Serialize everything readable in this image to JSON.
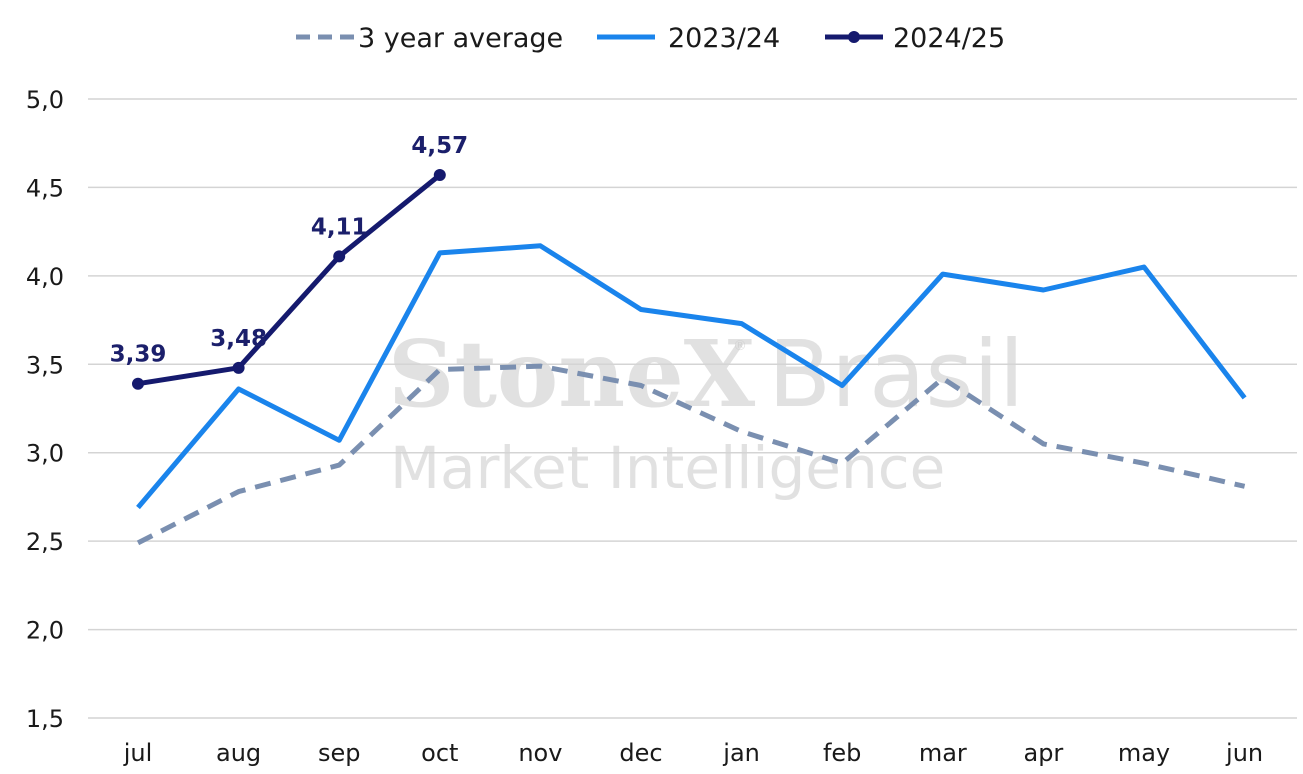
{
  "watermark": {
    "brand_a": "StoneX",
    "registered": "®",
    "brand_b": "Brasil",
    "subtitle": "Market Intelligence"
  },
  "chart_data": {
    "type": "line",
    "title": "",
    "xlabel": "",
    "ylabel": "",
    "categories": [
      "jul",
      "aug",
      "sep",
      "oct",
      "nov",
      "dec",
      "jan",
      "feb",
      "mar",
      "apr",
      "may",
      "jun"
    ],
    "ylim": [
      1.5,
      5.0
    ],
    "yticks": [
      1.5,
      2.0,
      2.5,
      3.0,
      3.5,
      4.0,
      4.5,
      5.0
    ],
    "ytick_labels": [
      "1,5",
      "2,0",
      "2,5",
      "3,0",
      "3,5",
      "4,0",
      "4,5",
      "5,0"
    ],
    "grid": true,
    "legend_position": "top-center",
    "series": [
      {
        "name": "3 year average",
        "color": "#7a8fb0",
        "style": "dashed",
        "values": [
          2.49,
          2.78,
          2.93,
          3.47,
          3.49,
          3.38,
          3.12,
          2.94,
          3.42,
          3.05,
          2.94,
          2.81
        ]
      },
      {
        "name": "2023/24",
        "color": "#1a84ec",
        "style": "solid",
        "values": [
          2.69,
          3.36,
          3.07,
          4.13,
          4.17,
          3.81,
          3.73,
          3.38,
          4.01,
          3.92,
          4.05,
          3.31
        ]
      },
      {
        "name": "2024/25",
        "color": "#151a6e",
        "style": "solid-markers",
        "values": [
          3.39,
          3.48,
          4.11,
          4.57,
          null,
          null,
          null,
          null,
          null,
          null,
          null,
          null
        ],
        "data_labels": [
          "3,39",
          "3,48",
          "4,11",
          "4,57"
        ]
      }
    ]
  }
}
